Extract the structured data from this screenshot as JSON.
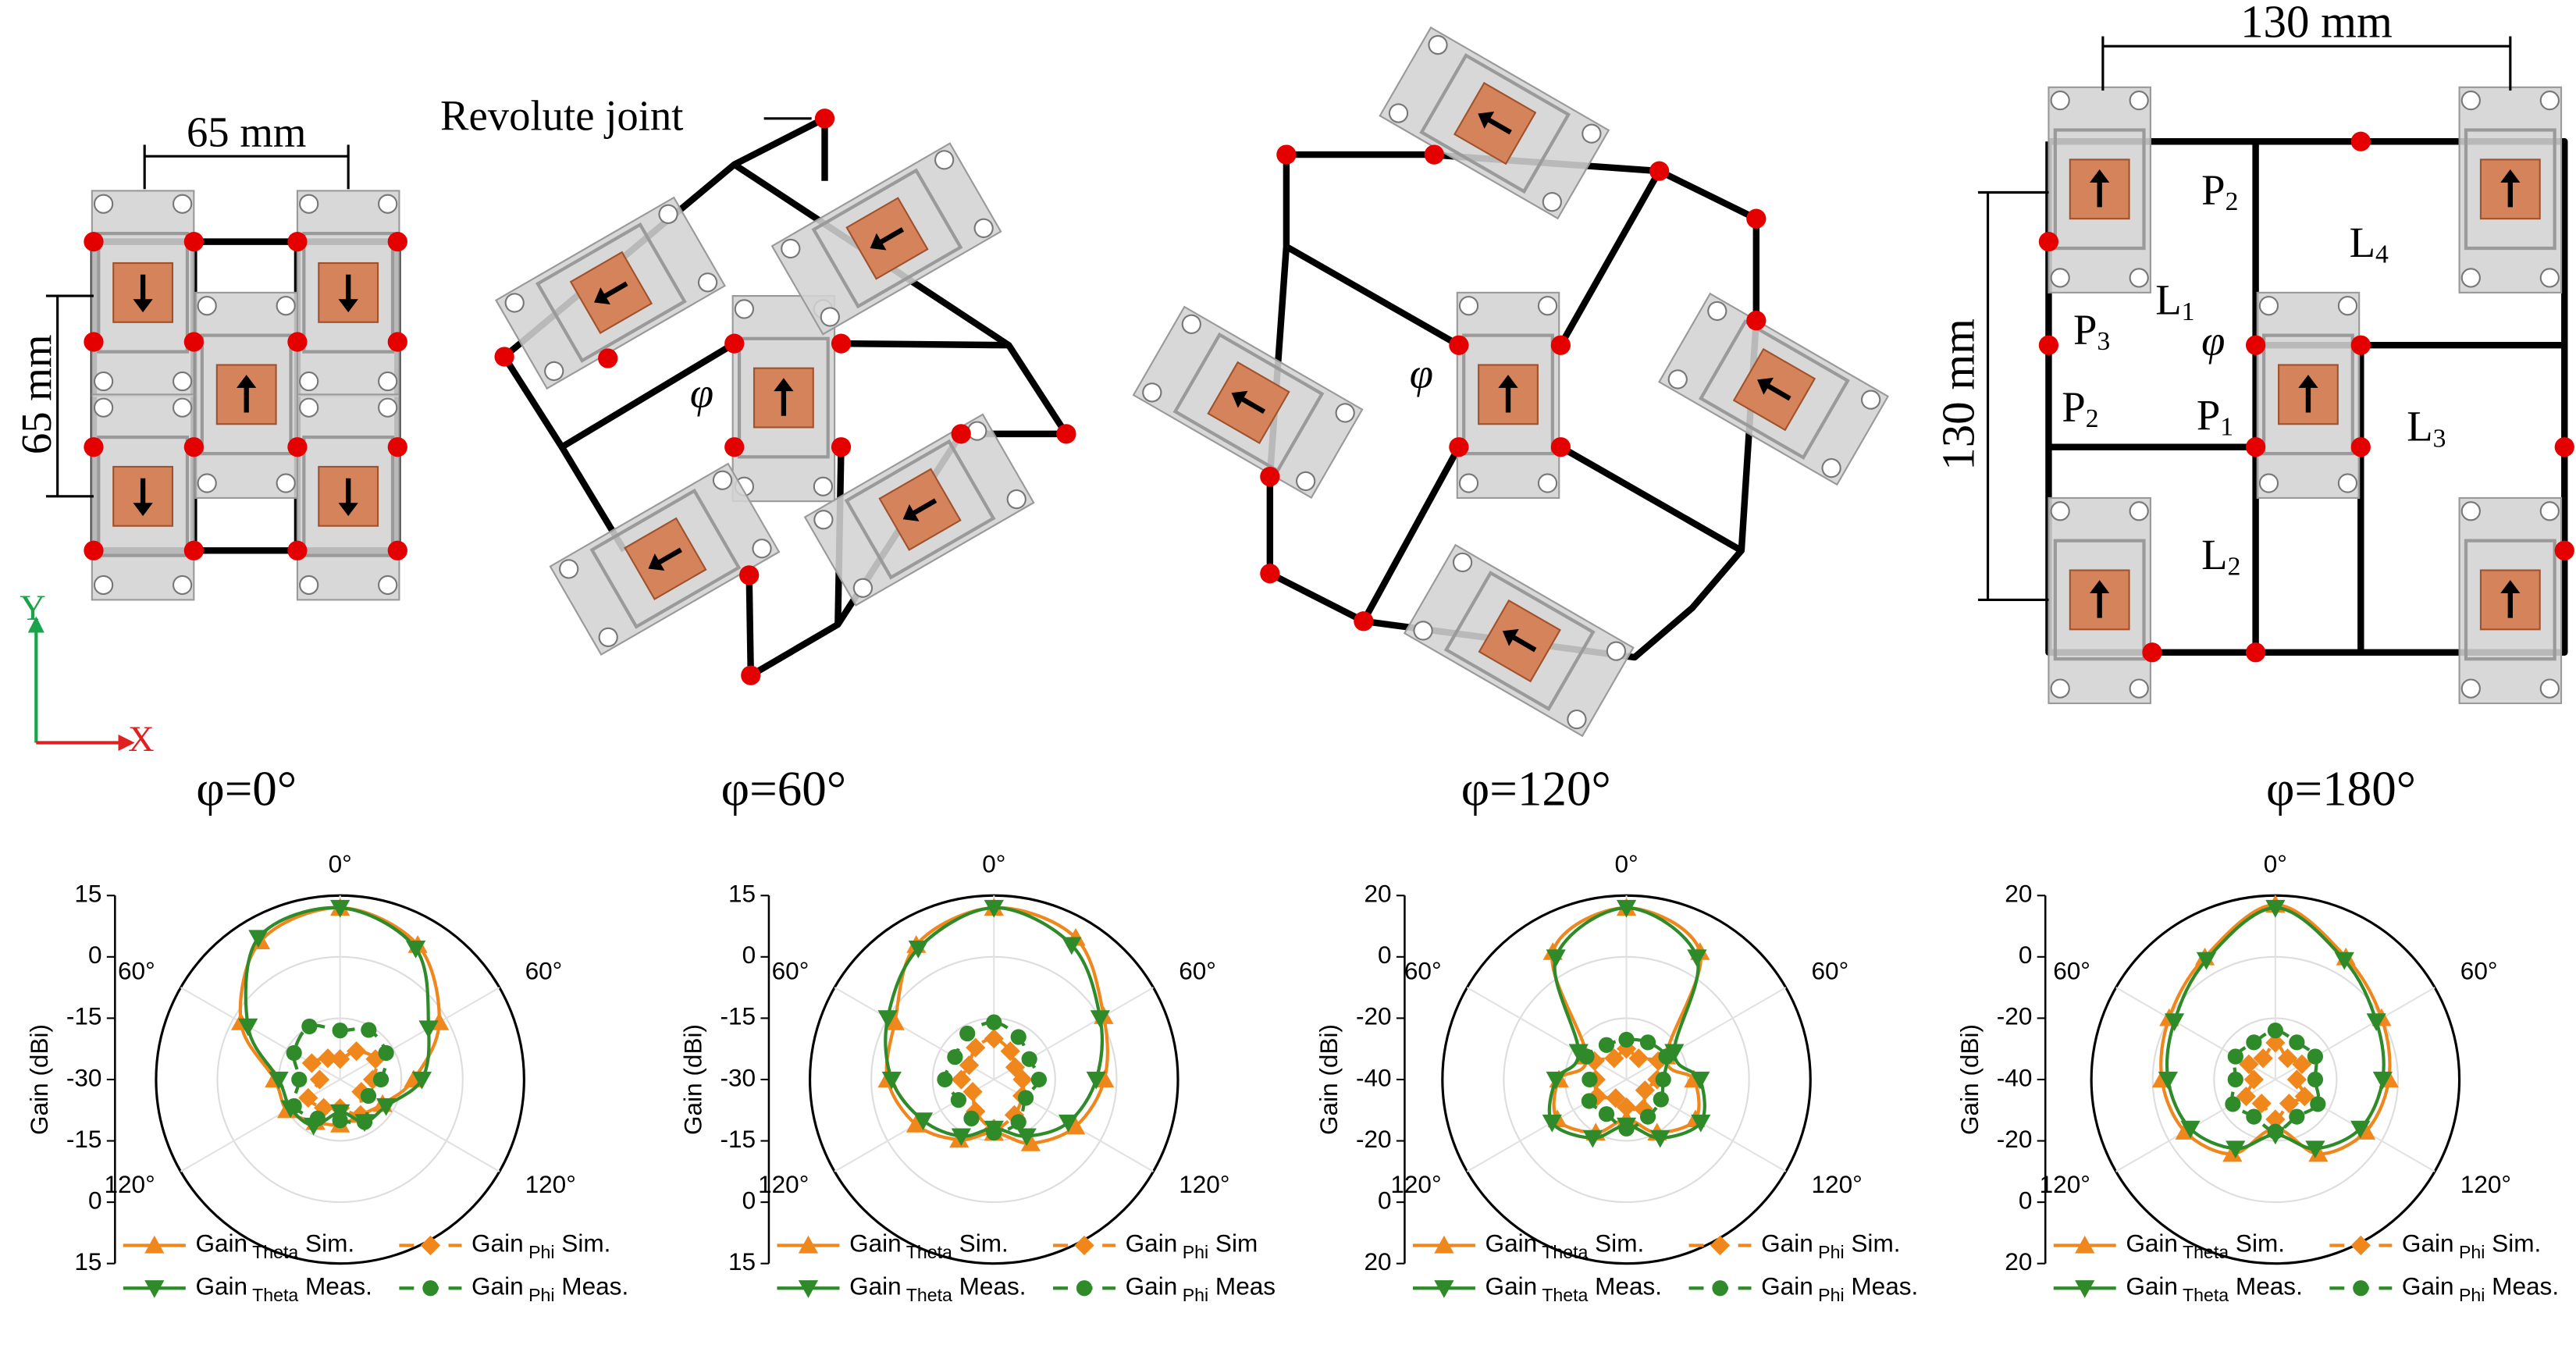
{
  "diagrams": {
    "dim_65_h": "65 mm",
    "dim_65_v": "65 mm",
    "revolute_joint": "Revolute joint",
    "axis_y": "Y",
    "axis_x": "X",
    "phi_symbol": "φ",
    "captions": [
      "φ=0°",
      "φ=60°",
      "φ=120°",
      "φ=180°"
    ],
    "dim_130_h": "130 mm",
    "dim_130_v": "130 mm",
    "links": [
      {
        "letter": "L",
        "sub": "1"
      },
      {
        "letter": "L",
        "sub": "4"
      },
      {
        "letter": "L",
        "sub": "3"
      },
      {
        "letter": "L",
        "sub": "2"
      }
    ],
    "ports": [
      {
        "letter": "P",
        "sub": "2"
      },
      {
        "letter": "P",
        "sub": "3"
      },
      {
        "letter": "P",
        "sub": "2"
      },
      {
        "letter": "P",
        "sub": "1"
      }
    ]
  },
  "chart_data": [
    {
      "type": "polar",
      "ylabel": "Gain (dBi)",
      "rlim": [
        -30,
        15
      ],
      "rticks": [
        15,
        0,
        -15,
        -30
      ],
      "thetaticks": [
        {
          "value": 0,
          "label": "0°"
        },
        {
          "value": 300,
          "label": "60°"
        },
        {
          "value": 60,
          "label": "60°"
        },
        {
          "value": 240,
          "label": "120°"
        },
        {
          "value": 120,
          "label": "120°"
        }
      ],
      "theta": [
        0,
        30,
        60,
        90,
        120,
        150,
        180,
        210,
        240,
        270,
        300,
        330
      ],
      "series": [
        {
          "name": "Gain Theta Sim.",
          "color": "#f0871c",
          "marker": "triangle-up",
          "dashed": false,
          "values": [
            12,
            8,
            -2,
            -12,
            -18,
            -20,
            -19,
            -18,
            -15,
            -14,
            -2,
            9
          ]
        },
        {
          "name": "Gain Phi Sim.",
          "color": "#f0871c",
          "marker": "diamond",
          "dashed": true,
          "values": [
            -25,
            -22,
            -20,
            -22,
            -24,
            -20,
            -23,
            -22,
            -21,
            -25,
            -22,
            -24
          ]
        },
        {
          "name": "Gain Theta Meas.",
          "color": "#2f8a2a",
          "marker": "triangle-down",
          "dashed": false,
          "values": [
            12,
            7,
            -5,
            -10,
            -17,
            -18,
            -22,
            -17,
            -16,
            -15,
            -4,
            10
          ]
        },
        {
          "name": "Gain Phi Meas.",
          "color": "#2f8a2a",
          "marker": "circle",
          "dashed": true,
          "values": [
            -18,
            -16,
            -17,
            -20,
            -22,
            -18,
            -20,
            -19,
            -17,
            -20,
            -17,
            -15
          ]
        }
      ]
    },
    {
      "type": "polar",
      "ylabel": "Gain (dBi)",
      "rlim": [
        -30,
        15
      ],
      "rticks": [
        15,
        0,
        -15,
        -30
      ],
      "thetaticks": [
        {
          "value": 0,
          "label": "0°"
        },
        {
          "value": 300,
          "label": "60°"
        },
        {
          "value": 60,
          "label": "60°"
        },
        {
          "value": 240,
          "label": "120°"
        },
        {
          "value": 120,
          "label": "120°"
        }
      ],
      "theta": [
        0,
        30,
        60,
        90,
        120,
        150,
        180,
        210,
        240,
        270,
        300,
        330
      ],
      "series": [
        {
          "name": "Gain Theta Sim.",
          "color": "#f0871c",
          "marker": "triangle-up",
          "dashed": false,
          "values": [
            12,
            10,
            1,
            -3,
            -7,
            -12,
            -17,
            -13,
            -8,
            -4,
            -2,
            8
          ]
        },
        {
          "name": "Gain Phi Sim",
          "color": "#f0871c",
          "marker": "diamond",
          "dashed": true,
          "values": [
            -20,
            -22,
            -24,
            -23,
            -22,
            -20,
            -18,
            -21,
            -24,
            -22,
            -23,
            -21
          ]
        },
        {
          "name": "Gain Theta Meas.",
          "color": "#2f8a2a",
          "marker": "triangle-down",
          "dashed": false,
          "values": [
            12,
            8,
            0,
            -5,
            -9,
            -14,
            -18,
            -14,
            -10,
            -5,
            0,
            7
          ]
        },
        {
          "name": "Gain Phi Meas",
          "color": "#2f8a2a",
          "marker": "circle",
          "dashed": true,
          "values": [
            -16,
            -18,
            -20,
            -19,
            -21,
            -18,
            -17,
            -19,
            -20,
            -18,
            -19,
            -17
          ]
        }
      ]
    },
    {
      "type": "polar",
      "ylabel": "Gain (dBi)",
      "rlim": [
        -40,
        20
      ],
      "rticks": [
        20,
        0,
        -20,
        -40
      ],
      "thetaticks": [
        {
          "value": 0,
          "label": "0°"
        },
        {
          "value": 300,
          "label": "60°"
        },
        {
          "value": 60,
          "label": "60°"
        },
        {
          "value": 240,
          "label": "120°"
        },
        {
          "value": 120,
          "label": "120°"
        }
      ],
      "theta": [
        0,
        30,
        60,
        90,
        120,
        150,
        180,
        210,
        240,
        270,
        300,
        330
      ],
      "series": [
        {
          "name": "Gain Theta Sim.",
          "color": "#f0871c",
          "marker": "triangle-up",
          "dashed": false,
          "values": [
            16,
            8,
            -25,
            -18,
            -14,
            -20,
            -27,
            -20,
            -14,
            -18,
            -25,
            8
          ]
        },
        {
          "name": "Gain Phi Sim.",
          "color": "#f0871c",
          "marker": "diamond",
          "dashed": true,
          "values": [
            -30,
            -32,
            -28,
            -30,
            -33,
            -29,
            -31,
            -33,
            -29,
            -30,
            -28,
            -32
          ]
        },
        {
          "name": "Gain Theta Meas.",
          "color": "#2f8a2a",
          "marker": "triangle-down",
          "dashed": false,
          "values": [
            16,
            6,
            -22,
            -16,
            -12,
            -18,
            -25,
            -18,
            -12,
            -17,
            -22,
            6
          ]
        },
        {
          "name": "Gain Phi Meas.",
          "color": "#2f8a2a",
          "marker": "circle",
          "dashed": true,
          "values": [
            -27,
            -26,
            -25,
            -28,
            -27,
            -26,
            -24,
            -27,
            -26,
            -28,
            -25,
            -27
          ]
        }
      ]
    },
    {
      "type": "polar",
      "ylabel": "Gain (dBi)",
      "rlim": [
        -40,
        20
      ],
      "rticks": [
        20,
        0,
        -20,
        -40
      ],
      "thetaticks": [
        {
          "value": 0,
          "label": "0°"
        },
        {
          "value": 300,
          "label": "60°"
        },
        {
          "value": 60,
          "label": "60°"
        },
        {
          "value": 240,
          "label": "120°"
        },
        {
          "value": 120,
          "label": "120°"
        }
      ],
      "theta": [
        0,
        30,
        60,
        90,
        120,
        150,
        180,
        210,
        240,
        270,
        300,
        330
      ],
      "series": [
        {
          "name": "Gain Theta Sim.",
          "color": "#f0871c",
          "marker": "triangle-up",
          "dashed": false,
          "values": [
            17,
            6,
            0,
            -3,
            -6,
            -12,
            -24,
            -12,
            -6,
            -3,
            0,
            6
          ]
        },
        {
          "name": "Gain Phi Sim.",
          "color": "#f0871c",
          "marker": "diamond",
          "dashed": true,
          "values": [
            -28,
            -32,
            -30,
            -33,
            -29,
            -31,
            -27,
            -31,
            -29,
            -33,
            -30,
            -32
          ]
        },
        {
          "name": "Gain Theta Meas.",
          "color": "#2f8a2a",
          "marker": "triangle-down",
          "dashed": false,
          "values": [
            16,
            5,
            -2,
            -5,
            -8,
            -14,
            -22,
            -14,
            -8,
            -5,
            -2,
            5
          ]
        },
        {
          "name": "Gain Phi Meas.",
          "color": "#2f8a2a",
          "marker": "circle",
          "dashed": true,
          "values": [
            -24,
            -26,
            -25,
            -27,
            -24,
            -26,
            -23,
            -26,
            -24,
            -27,
            -25,
            -26
          ]
        }
      ]
    }
  ]
}
